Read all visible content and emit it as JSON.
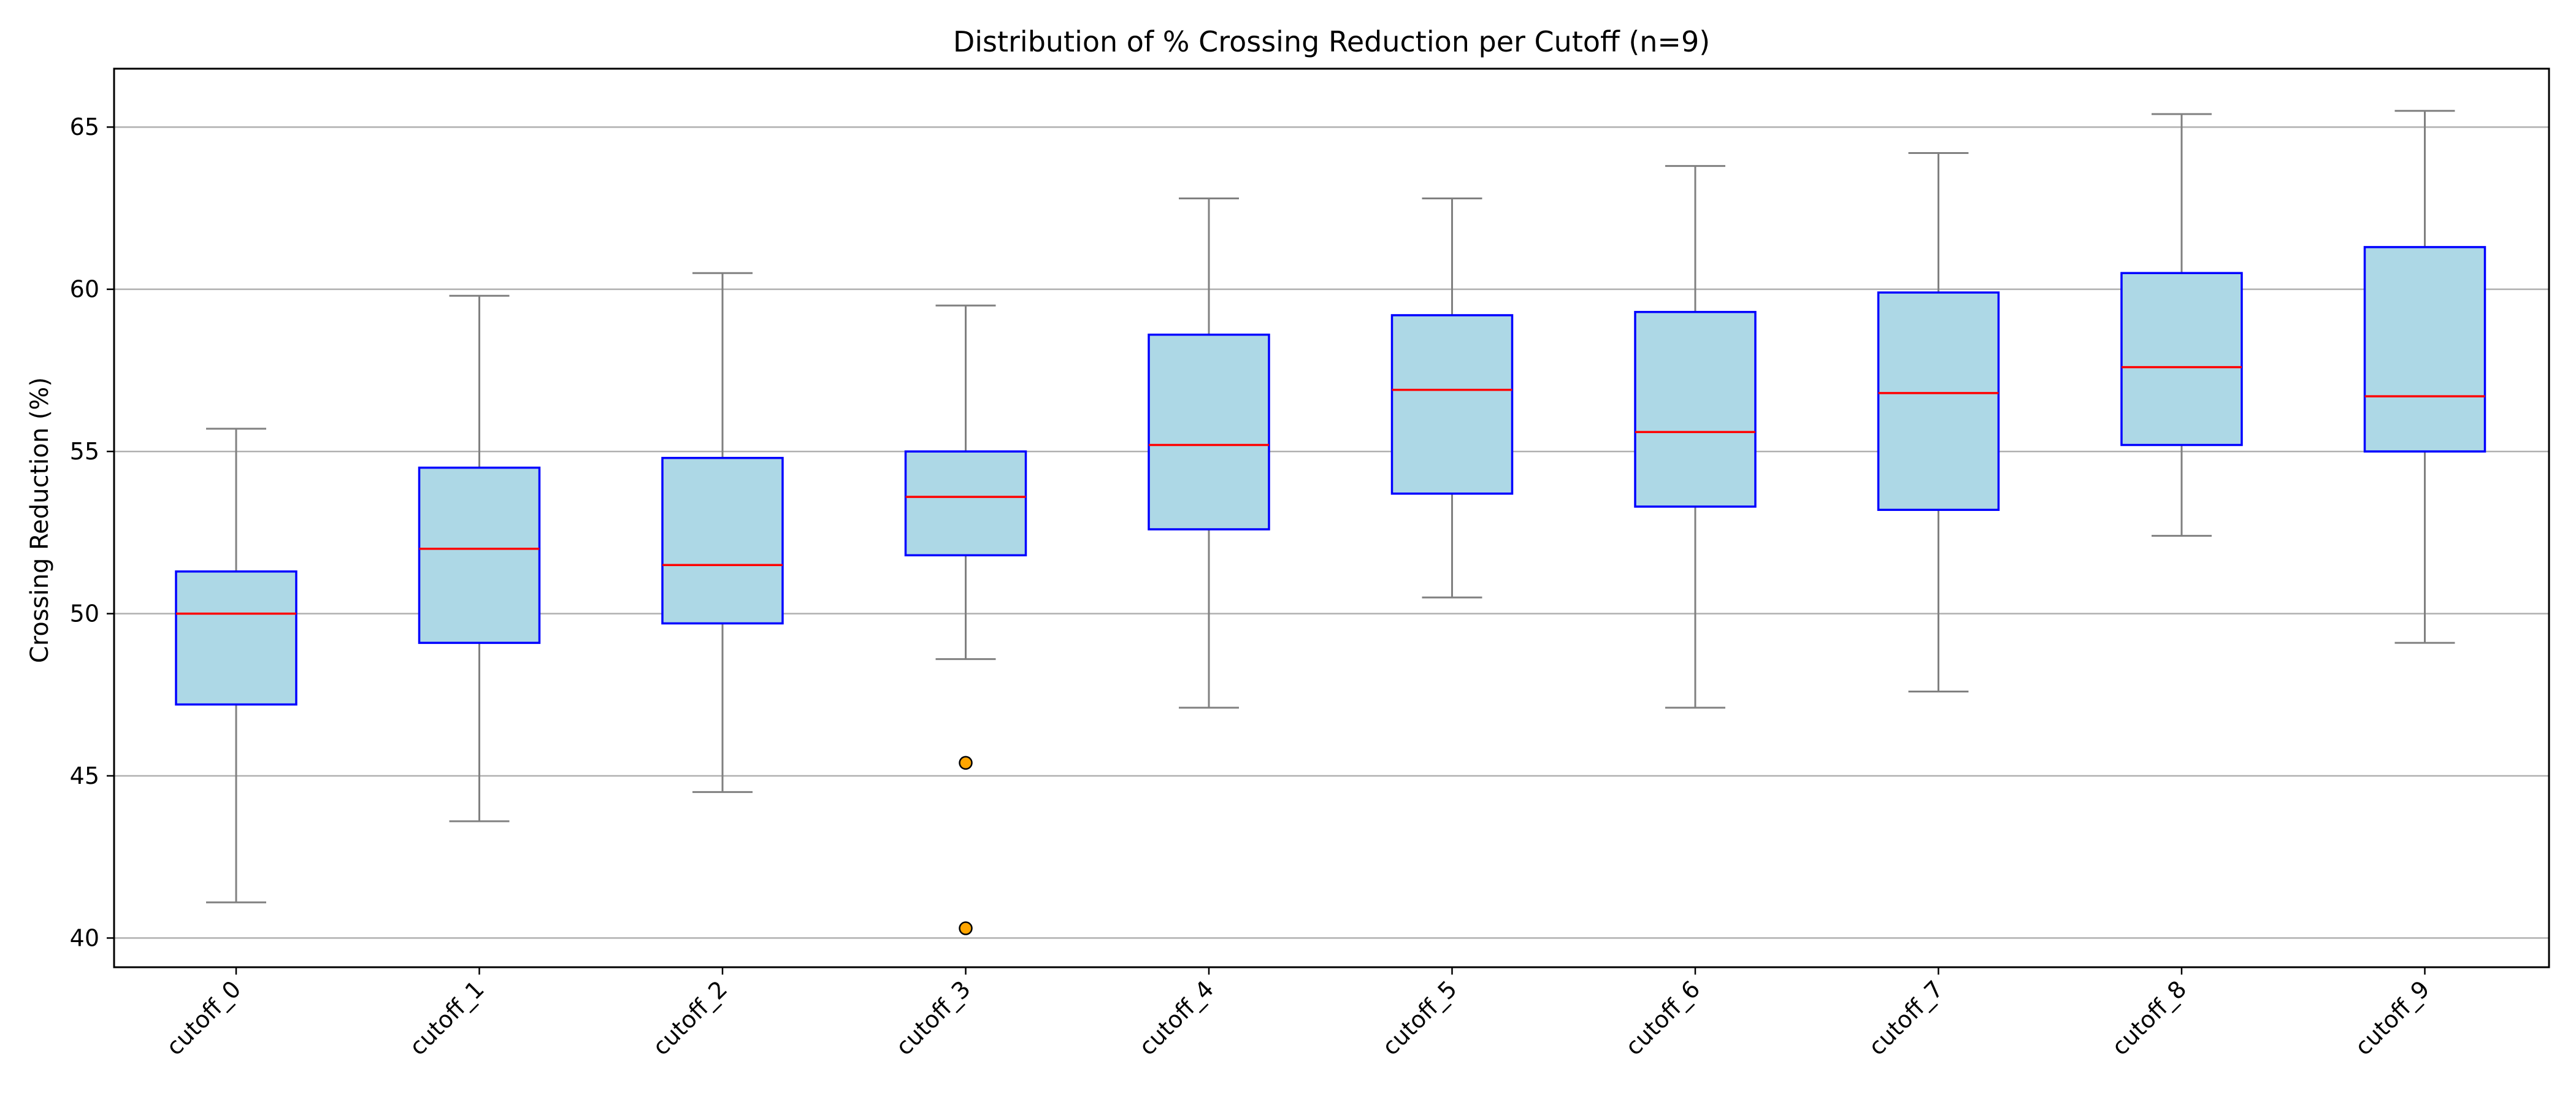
{
  "chart_data": {
    "type": "box",
    "title": "Distribution of % Crossing Reduction per Cutoff (n=9)",
    "xlabel": "",
    "ylabel": "Crossing Reduction (%)",
    "ylim": [
      39.1,
      66.8
    ],
    "yticks": [
      40,
      45,
      50,
      55,
      60,
      65
    ],
    "grid": "horizontal",
    "categories": [
      "cutoff_0",
      "cutoff_1",
      "cutoff_2",
      "cutoff_3",
      "cutoff_4",
      "cutoff_5",
      "cutoff_6",
      "cutoff_7",
      "cutoff_8",
      "cutoff_9"
    ],
    "boxes": [
      {
        "whisker_low": 41.1,
        "q1": 47.2,
        "median": 50.0,
        "q3": 51.3,
        "whisker_high": 55.7,
        "outliers": []
      },
      {
        "whisker_low": 43.6,
        "q1": 49.1,
        "median": 52.0,
        "q3": 54.5,
        "whisker_high": 59.8,
        "outliers": []
      },
      {
        "whisker_low": 44.5,
        "q1": 49.7,
        "median": 51.5,
        "q3": 54.8,
        "whisker_high": 60.5,
        "outliers": []
      },
      {
        "whisker_low": 48.6,
        "q1": 51.8,
        "median": 53.6,
        "q3": 55.0,
        "whisker_high": 59.5,
        "outliers": [
          45.4,
          40.3
        ]
      },
      {
        "whisker_low": 47.1,
        "q1": 52.6,
        "median": 55.2,
        "q3": 58.6,
        "whisker_high": 62.8,
        "outliers": []
      },
      {
        "whisker_low": 50.5,
        "q1": 53.7,
        "median": 56.9,
        "q3": 59.2,
        "whisker_high": 62.8,
        "outliers": []
      },
      {
        "whisker_low": 47.1,
        "q1": 53.3,
        "median": 55.6,
        "q3": 59.3,
        "whisker_high": 63.8,
        "outliers": []
      },
      {
        "whisker_low": 47.6,
        "q1": 53.2,
        "median": 56.8,
        "q3": 59.9,
        "whisker_high": 64.2,
        "outliers": []
      },
      {
        "whisker_low": 52.4,
        "q1": 55.2,
        "median": 57.6,
        "q3": 60.5,
        "whisker_high": 65.4,
        "outliers": []
      },
      {
        "whisker_low": 49.1,
        "q1": 55.0,
        "median": 56.7,
        "q3": 61.3,
        "whisker_high": 65.5,
        "outliers": []
      }
    ],
    "colors": {
      "box_fill": "#add8e6",
      "box_edge": "#0000ff",
      "median": "#ff0000",
      "whisker": "#808080",
      "outlier_fill": "#ffa500",
      "outlier_edge": "#000000"
    }
  }
}
